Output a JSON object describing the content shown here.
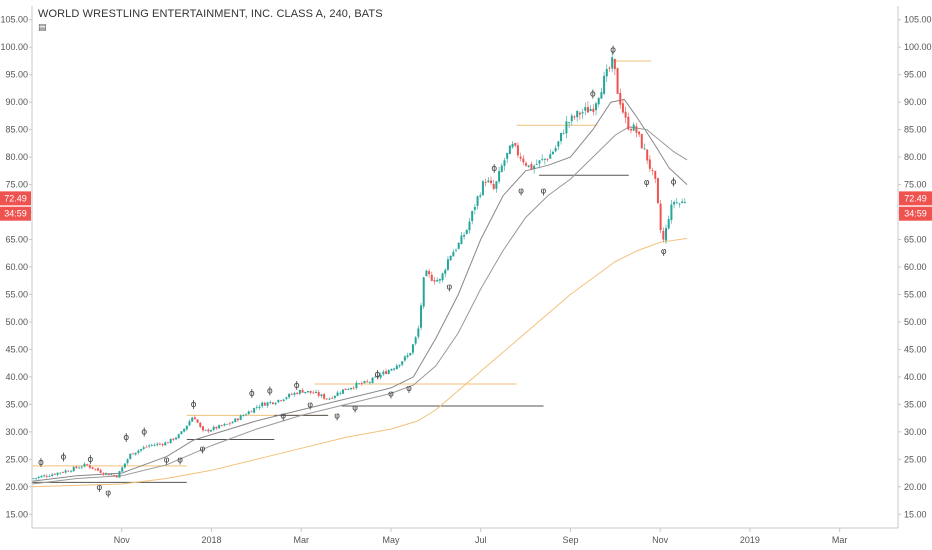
{
  "chart_title": "WORLD WRESTLING ENTERTAINMENT, INC. CLASS A, 240, BATS",
  "title_icon": "info-icon",
  "chart_data": {
    "type": "candlestick",
    "title": "WORLD WRESTLING ENTERTAINMENT, INC. CLASS A, 240, BATS",
    "ylim": [
      12.5,
      107.5
    ],
    "y_ticks": [
      "15.00",
      "20.00",
      "25.00",
      "30.00",
      "35.00",
      "40.00",
      "45.00",
      "50.00",
      "55.00",
      "60.00",
      "65.00",
      "70.00",
      "75.00",
      "80.00",
      "85.00",
      "90.00",
      "95.00",
      "100.00",
      "105.00"
    ],
    "y_tick_values": [
      15,
      20,
      25,
      30,
      35,
      40,
      45,
      50,
      55,
      60,
      65,
      70,
      75,
      80,
      85,
      90,
      95,
      100,
      105
    ],
    "xlim": [
      0,
      19.3
    ],
    "x_ticks": [
      {
        "label": "Nov",
        "x": 2
      },
      {
        "label": "2018",
        "x": 4
      },
      {
        "label": "Mar",
        "x": 6
      },
      {
        "label": "May",
        "x": 8
      },
      {
        "label": "Jul",
        "x": 10
      },
      {
        "label": "Sep",
        "x": 12
      },
      {
        "label": "Nov",
        "x": 14
      },
      {
        "label": "2019",
        "x": 16
      },
      {
        "label": "Mar",
        "x": 18
      }
    ],
    "price_path": [
      [
        0,
        21.5
      ],
      [
        0.4,
        22.2
      ],
      [
        0.8,
        23.0
      ],
      [
        1.2,
        24.0
      ],
      [
        1.6,
        22.5
      ],
      [
        1.9,
        22.0
      ],
      [
        2.2,
        26.0
      ],
      [
        2.6,
        27.5
      ],
      [
        3.0,
        28.0
      ],
      [
        3.3,
        29.5
      ],
      [
        3.6,
        33.0
      ],
      [
        3.8,
        30.0
      ],
      [
        4.0,
        30.5
      ],
      [
        4.4,
        31.5
      ],
      [
        4.8,
        33.5
      ],
      [
        5.1,
        35.0
      ],
      [
        5.4,
        35.5
      ],
      [
        5.7,
        36.5
      ],
      [
        6.0,
        37.5
      ],
      [
        6.3,
        37.0
      ],
      [
        6.6,
        36.0
      ],
      [
        6.9,
        37.5
      ],
      [
        7.2,
        38.5
      ],
      [
        7.5,
        39.0
      ],
      [
        7.8,
        40.5
      ],
      [
        8.1,
        42.0
      ],
      [
        8.4,
        44.0
      ],
      [
        8.6,
        48.0
      ],
      [
        8.75,
        59.0
      ],
      [
        8.9,
        58.0
      ],
      [
        9.1,
        57.5
      ],
      [
        9.3,
        62.0
      ],
      [
        9.5,
        64.0
      ],
      [
        9.7,
        67.0
      ],
      [
        9.9,
        72.0
      ],
      [
        10.1,
        76.0
      ],
      [
        10.3,
        74.0
      ],
      [
        10.5,
        79.0
      ],
      [
        10.7,
        82.0
      ],
      [
        10.9,
        80.0
      ],
      [
        11.1,
        78.0
      ],
      [
        11.3,
        79.0
      ],
      [
        11.5,
        80.0
      ],
      [
        11.7,
        82.0
      ],
      [
        11.9,
        86.0
      ],
      [
        12.2,
        88.0
      ],
      [
        12.5,
        89.0
      ],
      [
        12.75,
        94.0
      ],
      [
        12.95,
        97.5
      ],
      [
        13.05,
        92.0
      ],
      [
        13.25,
        86.0
      ],
      [
        13.45,
        85.0
      ],
      [
        13.7,
        80.0
      ],
      [
        13.9,
        75.0
      ],
      [
        14.0,
        67.0
      ],
      [
        14.08,
        64.5
      ],
      [
        14.18,
        69.0
      ],
      [
        14.3,
        72.0
      ],
      [
        14.45,
        71.5
      ],
      [
        14.6,
        72.5
      ]
    ],
    "series": [
      {
        "type": "line",
        "color": "#888888",
        "points": [
          [
            0,
            21.0
          ],
          [
            1.0,
            22.0
          ],
          [
            2.0,
            22.5
          ],
          [
            3.0,
            25.5
          ],
          [
            3.6,
            28.5
          ],
          [
            4.0,
            29.5
          ],
          [
            5.0,
            32.0
          ],
          [
            6.0,
            34.0
          ],
          [
            7.0,
            36.0
          ],
          [
            8.0,
            38.0
          ],
          [
            8.5,
            40.0
          ],
          [
            9.0,
            47.0
          ],
          [
            9.5,
            55.0
          ],
          [
            10.0,
            65.0
          ],
          [
            10.5,
            73.0
          ],
          [
            11.0,
            77.5
          ],
          [
            11.5,
            78.5
          ],
          [
            12.0,
            80.0
          ],
          [
            12.5,
            85.0
          ],
          [
            12.9,
            90.0
          ],
          [
            13.2,
            90.5
          ],
          [
            13.5,
            87.0
          ],
          [
            13.9,
            82.0
          ],
          [
            14.2,
            78.0
          ],
          [
            14.6,
            75.0
          ]
        ]
      },
      {
        "type": "line",
        "color": "#999999",
        "points": [
          [
            0,
            20.5
          ],
          [
            1.0,
            21.5
          ],
          [
            2.0,
            22.0
          ],
          [
            3.0,
            24.0
          ],
          [
            4.0,
            27.5
          ],
          [
            5.0,
            30.5
          ],
          [
            6.0,
            33.0
          ],
          [
            7.0,
            35.0
          ],
          [
            8.0,
            37.0
          ],
          [
            8.5,
            38.5
          ],
          [
            9.0,
            42.0
          ],
          [
            9.5,
            48.0
          ],
          [
            10.0,
            56.0
          ],
          [
            10.5,
            63.0
          ],
          [
            11.0,
            69.0
          ],
          [
            11.5,
            73.0
          ],
          [
            12.0,
            76.0
          ],
          [
            12.5,
            80.0
          ],
          [
            13.0,
            84.0
          ],
          [
            13.3,
            85.5
          ],
          [
            13.7,
            85.0
          ],
          [
            14.0,
            83.0
          ],
          [
            14.3,
            81.0
          ],
          [
            14.6,
            79.5
          ]
        ]
      },
      {
        "type": "line",
        "color": "#f3c07a",
        "points": [
          [
            0,
            20.0
          ],
          [
            2.0,
            20.5
          ],
          [
            3.0,
            21.5
          ],
          [
            4.0,
            23.0
          ],
          [
            5.0,
            25.0
          ],
          [
            6.0,
            27.0
          ],
          [
            7.0,
            29.0
          ],
          [
            8.0,
            30.5
          ],
          [
            8.6,
            32.0
          ],
          [
            9.0,
            34.0
          ],
          [
            10.0,
            41.0
          ],
          [
            11.0,
            48.0
          ],
          [
            12.0,
            55.0
          ],
          [
            13.0,
            61.0
          ],
          [
            13.5,
            63.0
          ],
          [
            14.0,
            64.5
          ],
          [
            14.6,
            65.2
          ]
        ]
      }
    ],
    "levels": [
      {
        "color": "#555555",
        "y": 20.8,
        "x0": 0,
        "x1": 3.45
      },
      {
        "color": "#f3c07a",
        "y": 23.8,
        "x0": 0,
        "x1": 3.45
      },
      {
        "color": "#555555",
        "y": 28.6,
        "x0": 3.45,
        "x1": 5.4
      },
      {
        "color": "#f3c07a",
        "y": 33.0,
        "x0": 3.45,
        "x1": 6.6
      },
      {
        "color": "#555555",
        "y": 33.0,
        "x0": 5.4,
        "x1": 6.6
      },
      {
        "color": "#f3c07a",
        "y": 38.7,
        "x0": 6.3,
        "x1": 10.8
      },
      {
        "color": "#555555",
        "y": 34.7,
        "x0": 6.9,
        "x1": 11.4
      },
      {
        "color": "#f3c07a",
        "y": 85.8,
        "x0": 10.8,
        "x1": 12.6
      },
      {
        "color": "#555555",
        "y": 76.7,
        "x0": 11.3,
        "x1": 13.3
      },
      {
        "color": "#f3c07a",
        "y": 97.5,
        "x0": 12.95,
        "x1": 13.8
      }
    ],
    "fractal_marks": [
      {
        "x": 0.2,
        "y": 24.0,
        "kind": "high"
      },
      {
        "x": 0.7,
        "y": 25.0,
        "kind": "high"
      },
      {
        "x": 1.3,
        "y": 24.5,
        "kind": "high"
      },
      {
        "x": 1.5,
        "y": 20.5,
        "kind": "low"
      },
      {
        "x": 1.7,
        "y": 19.5,
        "kind": "low"
      },
      {
        "x": 2.1,
        "y": 28.5,
        "kind": "high"
      },
      {
        "x": 2.5,
        "y": 29.5,
        "kind": "high"
      },
      {
        "x": 3.0,
        "y": 25.5,
        "kind": "low"
      },
      {
        "x": 3.3,
        "y": 25.5,
        "kind": "low"
      },
      {
        "x": 3.6,
        "y": 34.5,
        "kind": "high"
      },
      {
        "x": 3.8,
        "y": 27.5,
        "kind": "low"
      },
      {
        "x": 4.9,
        "y": 36.5,
        "kind": "high"
      },
      {
        "x": 5.3,
        "y": 37.0,
        "kind": "high"
      },
      {
        "x": 5.6,
        "y": 33.5,
        "kind": "low"
      },
      {
        "x": 5.9,
        "y": 38.0,
        "kind": "high"
      },
      {
        "x": 6.2,
        "y": 35.5,
        "kind": "low"
      },
      {
        "x": 6.8,
        "y": 33.5,
        "kind": "low"
      },
      {
        "x": 7.2,
        "y": 35.0,
        "kind": "low"
      },
      {
        "x": 7.7,
        "y": 40.0,
        "kind": "high"
      },
      {
        "x": 8.0,
        "y": 37.5,
        "kind": "low"
      },
      {
        "x": 8.4,
        "y": 38.5,
        "kind": "low"
      },
      {
        "x": 9.3,
        "y": 57.0,
        "kind": "low"
      },
      {
        "x": 10.3,
        "y": 77.5,
        "kind": "high"
      },
      {
        "x": 10.9,
        "y": 74.5,
        "kind": "low"
      },
      {
        "x": 11.4,
        "y": 74.5,
        "kind": "low"
      },
      {
        "x": 12.5,
        "y": 91.0,
        "kind": "high"
      },
      {
        "x": 12.95,
        "y": 99.0,
        "kind": "high"
      },
      {
        "x": 13.7,
        "y": 76.0,
        "kind": "low"
      },
      {
        "x": 14.08,
        "y": 63.5,
        "kind": "low"
      },
      {
        "x": 14.3,
        "y": 75.0,
        "kind": "high"
      }
    ],
    "price_badges": [
      {
        "text": "72.49",
        "value": 72.49,
        "color": "#ef5350"
      },
      {
        "text": "34:59",
        "value": 69.7,
        "color": "#ef5350"
      }
    ],
    "colors": {
      "up": "#26a69a",
      "down": "#ef5350",
      "grid": "#eeeeee",
      "axis": "#c8c8c8"
    }
  }
}
